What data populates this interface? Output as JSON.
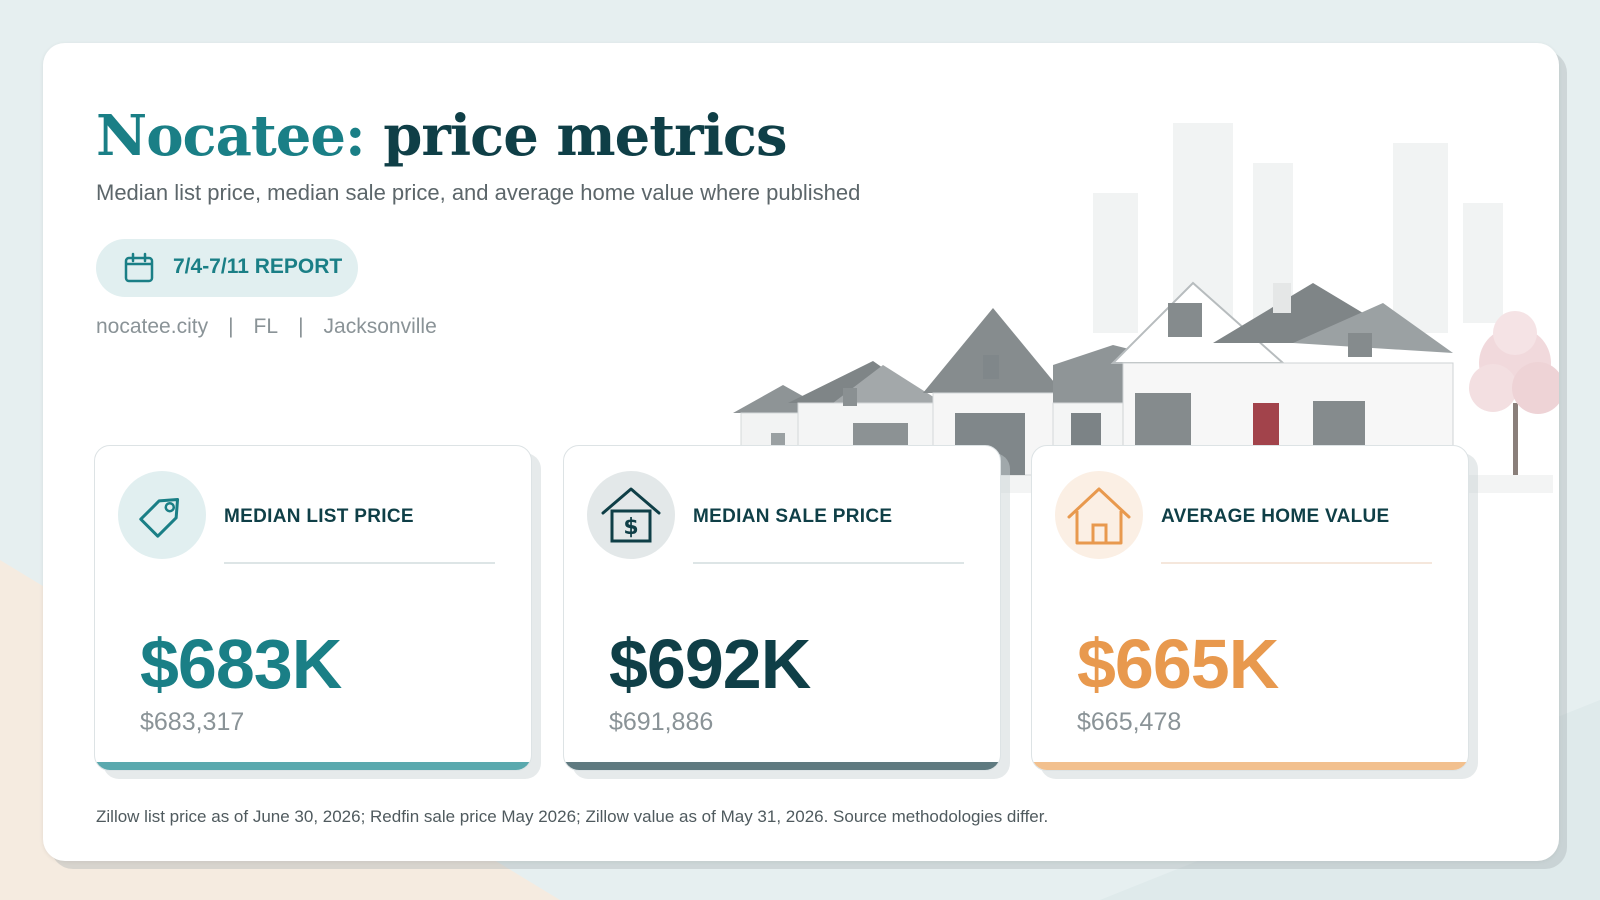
{
  "header": {
    "title_accent": "Nocatee:",
    "title_main": "price metrics",
    "subtitle": "Median list price, median sale price, and average home value where published"
  },
  "report": {
    "label": "7/4-7/11 REPORT",
    "icon": "calendar-icon"
  },
  "meta": {
    "site": "nocatee.city",
    "state": "FL",
    "city": "Jacksonville",
    "separator": "|"
  },
  "metrics": [
    {
      "label": "MEDIAN LIST PRICE",
      "value": "$683K",
      "exact": "$683,317",
      "icon": "price-tag-icon",
      "color": "#1a7f86",
      "bar_color": "#5aa9ae",
      "circle_color": "#e1eff0",
      "rule_color": "#dde5e6"
    },
    {
      "label": "MEDIAN SALE PRICE",
      "value": "$692K",
      "exact": "$691,886",
      "icon": "house-dollar-icon",
      "color": "#0f3f47",
      "bar_color": "#5f7a80",
      "circle_color": "#e3e8e9",
      "rule_color": "#dde5e6"
    },
    {
      "label": "AVERAGE HOME VALUE",
      "value": "$665K",
      "exact": "$665,478",
      "icon": "home-icon",
      "color": "#e8994e",
      "bar_color": "#f2c08e",
      "circle_color": "#fbefe4",
      "rule_color": "#f5e7dc"
    }
  ],
  "footnote": "Zillow list price as of June 30, 2026; Redfin sale price May 2026; Zillow value as of May 31, 2026. Source methodologies differ."
}
